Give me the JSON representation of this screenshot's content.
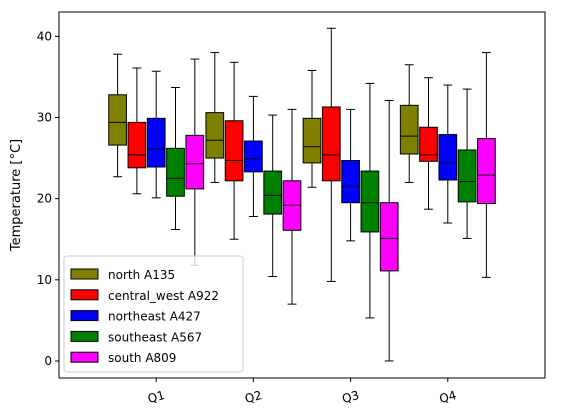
{
  "chart_data": {
    "type": "boxplot",
    "title": "",
    "xlabel": "",
    "ylabel": "Temperature [°C]",
    "ylim": [
      -2.1,
      43
    ],
    "yticks": [
      0,
      10,
      20,
      30,
      40
    ],
    "grid": false,
    "legend_position": "lower-left",
    "categories": [
      "Q1",
      "Q2",
      "Q3",
      "Q4"
    ],
    "series": [
      {
        "name": "north A135",
        "color": "#808000",
        "boxes": [
          {
            "whislo": 22.7,
            "q1": 26.6,
            "med": 29.4,
            "q3": 32.8,
            "whishi": 37.8
          },
          {
            "whislo": 22.0,
            "q1": 25.0,
            "med": 27.2,
            "q3": 30.6,
            "whishi": 38.0
          },
          {
            "whislo": 21.4,
            "q1": 24.4,
            "med": 26.4,
            "q3": 29.9,
            "whishi": 35.8
          },
          {
            "whislo": 22.0,
            "q1": 25.5,
            "med": 27.7,
            "q3": 31.5,
            "whishi": 36.5
          }
        ]
      },
      {
        "name": "central_west A922",
        "color": "#ff0000",
        "boxes": [
          {
            "whislo": 20.6,
            "q1": 23.8,
            "med": 25.4,
            "q3": 29.4,
            "whishi": 36.1
          },
          {
            "whislo": 15.0,
            "q1": 22.2,
            "med": 24.7,
            "q3": 29.6,
            "whishi": 36.8
          },
          {
            "whislo": 9.8,
            "q1": 22.2,
            "med": 25.4,
            "q3": 31.3,
            "whishi": 41.0
          },
          {
            "whislo": 18.7,
            "q1": 24.6,
            "med": 25.4,
            "q3": 28.8,
            "whishi": 34.9
          }
        ]
      },
      {
        "name": "northeast A427",
        "color": "#0000ff",
        "boxes": [
          {
            "whislo": 20.1,
            "q1": 23.9,
            "med": 26.1,
            "q3": 29.9,
            "whishi": 35.7
          },
          {
            "whislo": 17.8,
            "q1": 23.3,
            "med": 24.9,
            "q3": 27.1,
            "whishi": 32.6
          },
          {
            "whislo": 14.8,
            "q1": 19.5,
            "med": 21.5,
            "q3": 24.7,
            "whishi": 31.0
          },
          {
            "whislo": 17.0,
            "q1": 22.3,
            "med": 24.4,
            "q3": 27.9,
            "whishi": 34.0
          }
        ]
      },
      {
        "name": "southeast A567",
        "color": "#008000",
        "boxes": [
          {
            "whislo": 16.2,
            "q1": 20.3,
            "med": 22.5,
            "q3": 26.2,
            "whishi": 33.7
          },
          {
            "whislo": 10.4,
            "q1": 18.1,
            "med": 20.4,
            "q3": 23.4,
            "whishi": 30.3
          },
          {
            "whislo": 5.3,
            "q1": 15.9,
            "med": 19.5,
            "q3": 23.4,
            "whishi": 34.2
          },
          {
            "whislo": 15.1,
            "q1": 19.6,
            "med": 22.1,
            "q3": 26.0,
            "whishi": 33.5
          }
        ]
      },
      {
        "name": "south A809",
        "color": "#ff00ff",
        "boxes": [
          {
            "whislo": 11.8,
            "q1": 21.2,
            "med": 24.3,
            "q3": 27.8,
            "whishi": 37.2
          },
          {
            "whislo": 7.0,
            "q1": 16.1,
            "med": 19.2,
            "q3": 22.2,
            "whishi": 31.0
          },
          {
            "whislo": 0.0,
            "q1": 11.1,
            "med": 15.1,
            "q3": 19.5,
            "whishi": 32.1
          },
          {
            "whislo": 10.3,
            "q1": 19.4,
            "med": 22.9,
            "q3": 27.4,
            "whishi": 38.0
          }
        ]
      }
    ]
  }
}
